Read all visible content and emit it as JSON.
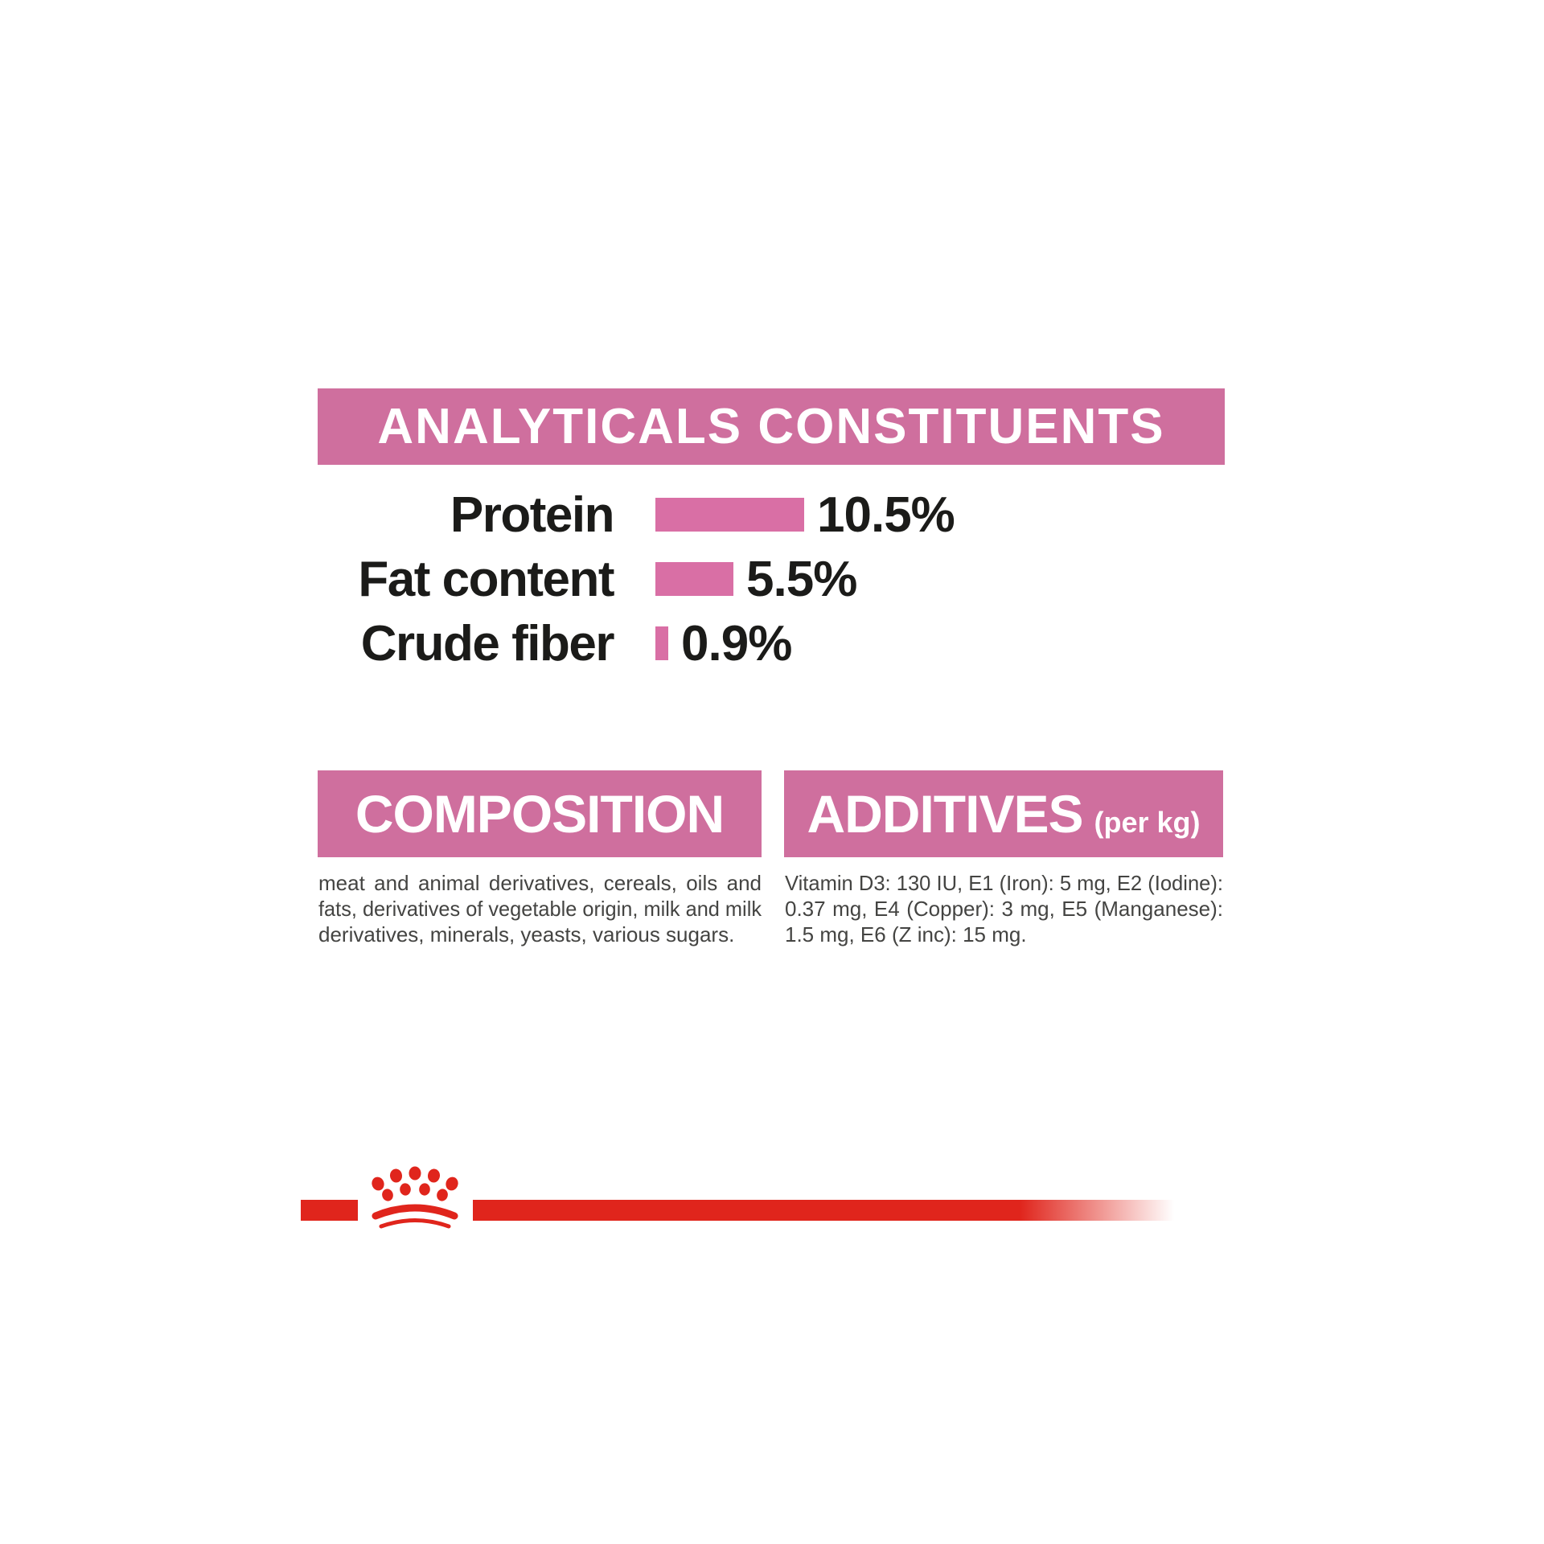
{
  "colors": {
    "banner-pink": "#cf6f9e",
    "bar-pink": "#d96fa5",
    "red": "#e0251c",
    "text-dark": "#1b1b19",
    "text-body": "#444442",
    "banner-text": "#ffffff"
  },
  "analytical": {
    "title": "ANALYTICALS CONSTITUENTS",
    "rows": [
      {
        "label": "Protein",
        "value": "10.5%",
        "pct": 10.5
      },
      {
        "label": "Fat content",
        "value": "5.5%",
        "pct": 5.5
      },
      {
        "label": "Crude fiber",
        "value": "0.9%",
        "pct": 0.9
      }
    ]
  },
  "composition": {
    "title": "COMPOSITION",
    "lines": [
      "meat and animal derivatives, cereals, oils and",
      "fats, derivatives of vegetable origin, milk and milk",
      "derivatives, minerals, yeasts, various sugars."
    ],
    "full_text": "meat and animal derivatives, cereals, oils and fats, derivatives of vegetable origin, milk and milk derivatives, minerals, yeasts, various sugars."
  },
  "additives": {
    "title": "ADDITIVES",
    "suffix": "(per kg)",
    "lines": [
      "Vitamin D3: 130 IU, E1 (Iron): 5 mg, E2 (Iodine):",
      "0.37 mg, E4 (Copper): 3 mg, E5 (Manganese):",
      "1.5 mg, E6 (Z inc): 15 mg."
    ],
    "full_text": "Vitamin D3: 130 IU, E1 (Iron): 5 mg, E2 (Iodine): 0.37 mg, E4 (Copper): 3 mg, E5 (Manganese): 1.5 mg, E6 (Z inc): 15 mg."
  },
  "logo": {
    "icon": "crown-paw-logo"
  },
  "chart_data": {
    "type": "bar",
    "orientation": "horizontal",
    "title": "ANALYTICALS CONSTITUENTS",
    "categories": [
      "Protein",
      "Fat content",
      "Crude fiber"
    ],
    "values": [
      10.5,
      5.5,
      0.9
    ],
    "unit": "%",
    "data_labels": [
      "10.5%",
      "5.5%",
      "0.9%"
    ],
    "bar_color": "#d96fa5",
    "axis": "none",
    "legend": "none",
    "grid": false
  }
}
